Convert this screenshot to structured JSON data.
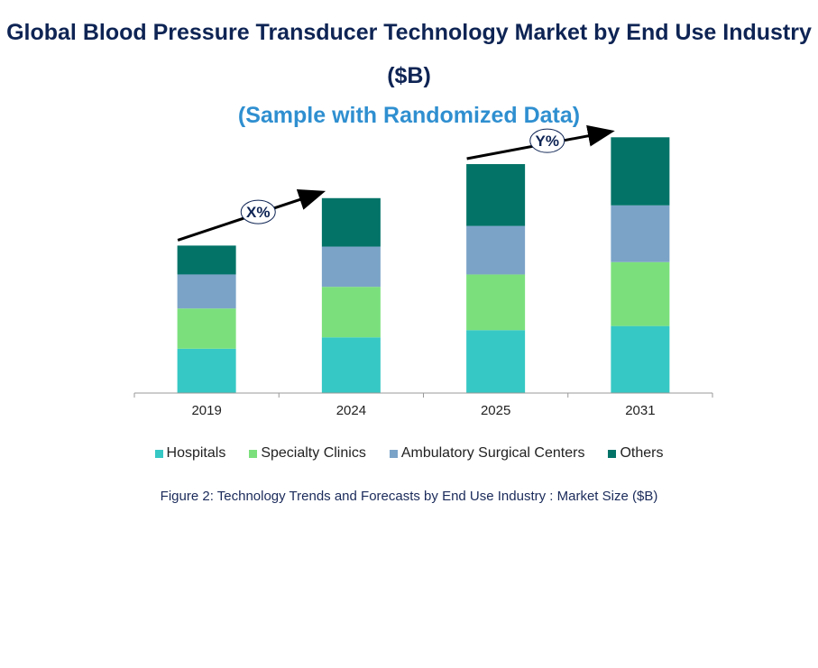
{
  "title": "Global Blood Pressure Transducer Technology Market by End Use Industry ($B)",
  "subtitle": "(Sample with Randomized Data)",
  "caption": "Figure 2: Technology  Trends  and Forecasts by  End Use Industry   : Market Size ($B)",
  "annotations": {
    "left_growth": "X%",
    "right_growth": "Y%"
  },
  "colors": {
    "hospitals": "#36c8c4",
    "specialty_clinics": "#7be07c",
    "ambulatory": "#7ba3c8",
    "others": "#037368",
    "axis": "#999999",
    "arrow": "#000000"
  },
  "chart_data": {
    "type": "bar",
    "stacked": true,
    "categories": [
      "2019",
      "2024",
      "2025",
      "2031"
    ],
    "series": [
      {
        "name": "Hospitals",
        "values": [
          4.3,
          5.4,
          6.1,
          6.5
        ]
      },
      {
        "name": "Specialty Clinics",
        "values": [
          3.9,
          4.9,
          5.4,
          6.2
        ]
      },
      {
        "name": "Ambulatory Surgical Centers",
        "values": [
          3.3,
          3.9,
          4.7,
          5.5
        ]
      },
      {
        "name": "Others",
        "values": [
          2.8,
          4.7,
          6.0,
          6.6
        ]
      }
    ],
    "ylim": [
      0,
      25
    ],
    "legend_position": "bottom",
    "grid": false
  }
}
